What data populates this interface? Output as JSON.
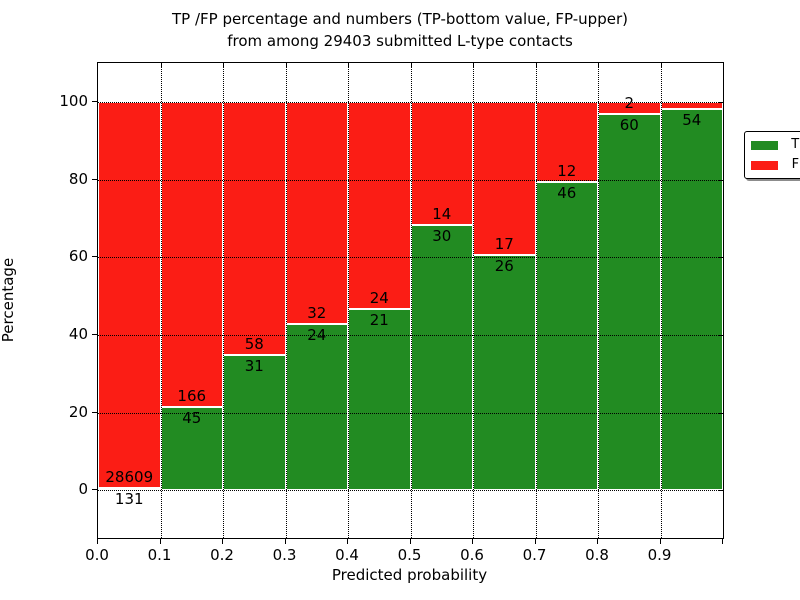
{
  "chart_data": {
    "type": "bar",
    "subtype": "stacked-percentage-histogram",
    "title_line1": "TP /FP percentage and numbers (TP-bottom value, FP-upper)",
    "title_line2": "from among 29403 submitted L-type contacts",
    "total_submitted_contacts": 29403,
    "xlabel": "Predicted probability",
    "ylabel": "Percentage",
    "x_tick_labels": [
      "0.0",
      "0.1",
      "0.2",
      "0.3",
      "0.4",
      "0.5",
      "0.6",
      "0.7",
      "0.8",
      "0.9"
    ],
    "y_tick_labels": [
      "0",
      "20",
      "40",
      "60",
      "80",
      "100"
    ],
    "y_tick_values": [
      0,
      20,
      40,
      60,
      80,
      100
    ],
    "xlim": [
      0.0,
      1.0
    ],
    "ylim": [
      -12.3,
      110
    ],
    "grid": "dotted, on both axes, drawn over bars",
    "legend": {
      "position": "upper right",
      "entries": [
        {
          "label": "TP",
          "color": "#228b22"
        },
        {
          "label": "FP",
          "color": "#fb1d15"
        }
      ]
    },
    "bars": [
      {
        "bin_start": 0.0,
        "bin_end": 0.1,
        "tp_count": "131",
        "fp_count": "28609",
        "tp_percent": 0.46
      },
      {
        "bin_start": 0.1,
        "bin_end": 0.2,
        "tp_count": "45",
        "fp_count": "166",
        "tp_percent": 21.33
      },
      {
        "bin_start": 0.2,
        "bin_end": 0.3,
        "tp_count": "31",
        "fp_count": "58",
        "tp_percent": 34.83
      },
      {
        "bin_start": 0.3,
        "bin_end": 0.4,
        "tp_count": "24",
        "fp_count": "32",
        "tp_percent": 42.86
      },
      {
        "bin_start": 0.4,
        "bin_end": 0.5,
        "tp_count": "21",
        "fp_count": "24",
        "tp_percent": 46.67
      },
      {
        "bin_start": 0.5,
        "bin_end": 0.6,
        "tp_count": "30",
        "fp_count": "14",
        "tp_percent": 68.18
      },
      {
        "bin_start": 0.6,
        "bin_end": 0.7,
        "tp_count": "26",
        "fp_count": "17",
        "tp_percent": 60.47
      },
      {
        "bin_start": 0.7,
        "bin_end": 0.8,
        "tp_count": "46",
        "fp_count": "12",
        "tp_percent": 79.31
      },
      {
        "bin_start": 0.8,
        "bin_end": 0.9,
        "tp_count": "60",
        "fp_count": "2",
        "tp_percent": 96.77
      },
      {
        "bin_start": 0.9,
        "bin_end": 1.0,
        "tp_count": "54",
        "fp_count": "",
        "tp_percent": 98.2
      }
    ],
    "colors": {
      "tp": "#228b22",
      "fp": "#fb1d15",
      "bar_edge": "#ffffff",
      "grid": "#000000",
      "background": "#ffffff"
    }
  }
}
